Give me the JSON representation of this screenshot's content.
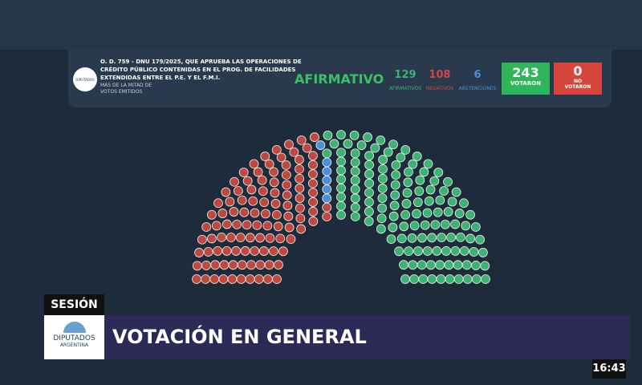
{
  "header": {
    "logo": "DIPUTADOS",
    "title_lines": [
      "O. D. 759 - DNU 179/2025, QUE APRUEBA LAS OPERACIONES DE",
      "CRÉDITO PÚBLICO CONTENIDAS EN EL PROG. DE FACILIDADES",
      "EXTENDIDAS ENTRE EL P.E. Y EL F.M.I."
    ],
    "note_lines": [
      "MÁS DE LA MITAD DE",
      "VOTOS EMITIDOS"
    ],
    "result": "AFIRMATIVO"
  },
  "votes": {
    "affirmative": {
      "count": 129,
      "label": "AFIRMATIVOS",
      "color": "#3cb371"
    },
    "negative": {
      "count": 108,
      "label": "NEGATIVOS",
      "color": "#c0483f"
    },
    "abstentions": {
      "count": 6,
      "label": "ABSTENCIONES",
      "color": "#4a8fd8"
    },
    "voted": {
      "count": 243,
      "label": "VOTARON"
    },
    "not_voted": {
      "count": 0,
      "label_lines": [
        "NO",
        "VOTARON"
      ]
    }
  },
  "session": {
    "label": "SESIÓN",
    "title": "VOTACIÓN EN GENERAL",
    "logo_lines": [
      "DIPUTADOS",
      "ARGENTINA"
    ]
  },
  "clock": "16:43"
}
